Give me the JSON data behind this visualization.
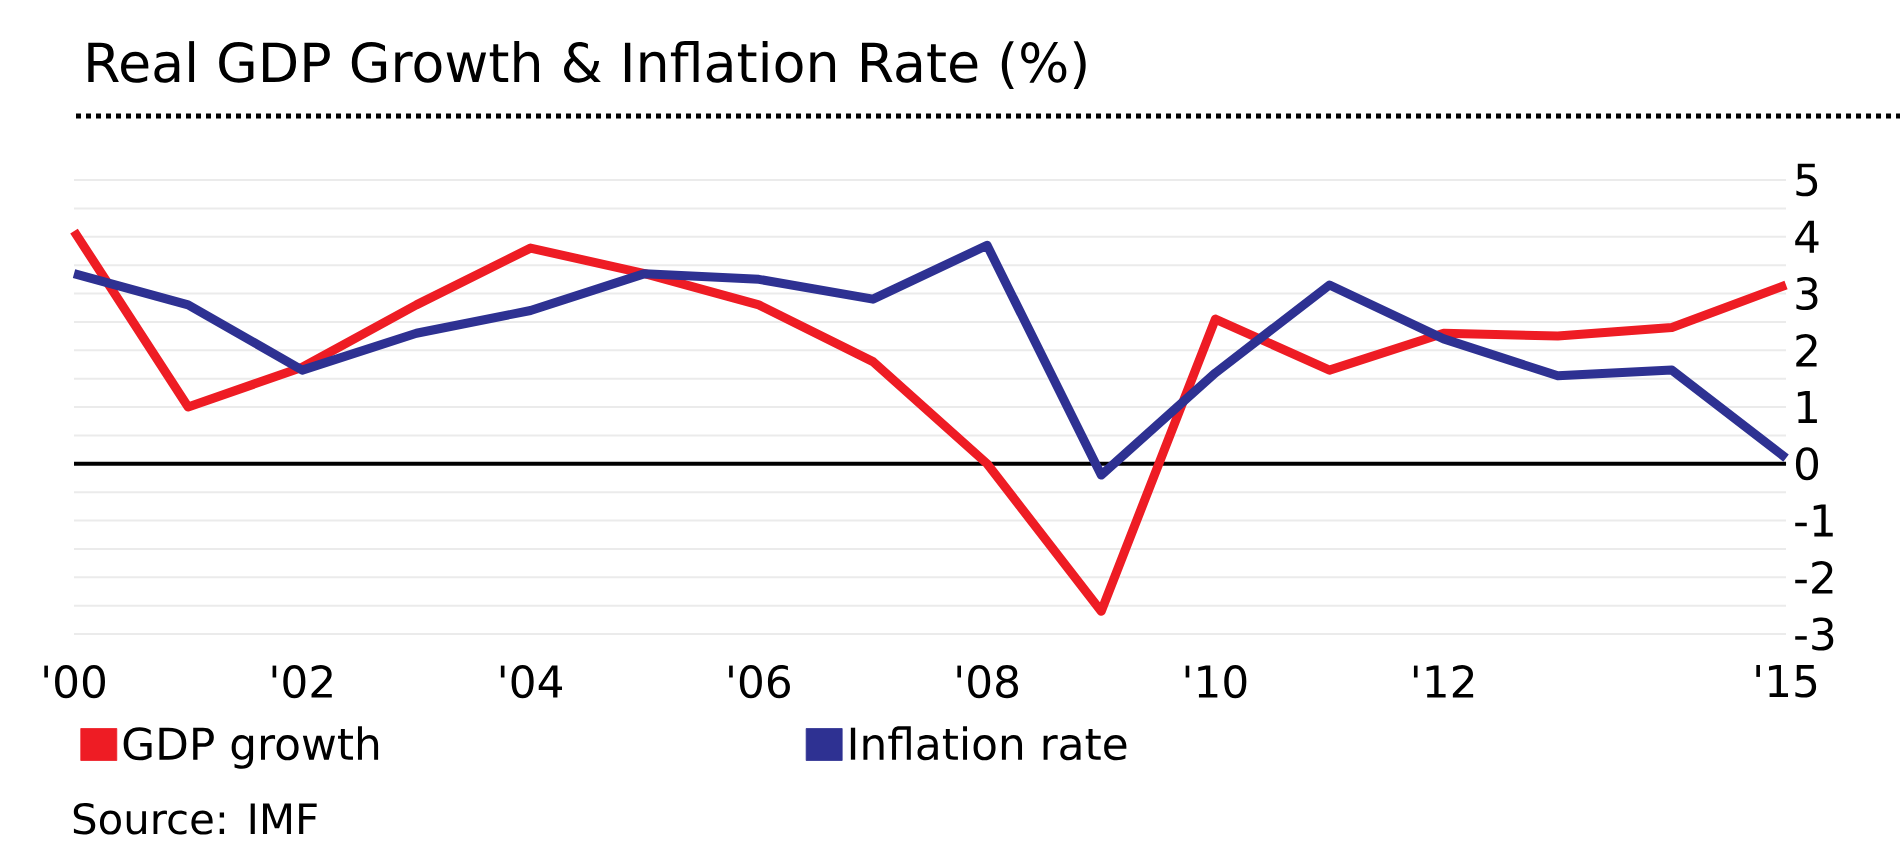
{
  "chart_data": {
    "type": "line",
    "title": "Real GDP Growth & Inflation Rate (%)",
    "x": [
      2000,
      2001,
      2002,
      2003,
      2004,
      2005,
      2006,
      2007,
      2008,
      2009,
      2010,
      2011,
      2012,
      2013,
      2014,
      2015
    ],
    "series": [
      {
        "name": "GDP growth",
        "color": "#ee1c24",
        "values": [
          4.1,
          1.0,
          1.7,
          2.8,
          3.8,
          3.35,
          2.8,
          1.8,
          0.0,
          -2.6,
          2.55,
          1.65,
          2.3,
          2.25,
          2.4,
          3.15
        ]
      },
      {
        "name": "Inflation rate",
        "color": "#2e3192",
        "values": [
          3.35,
          2.8,
          1.65,
          2.3,
          2.7,
          3.35,
          3.25,
          2.9,
          3.85,
          -0.2,
          1.6,
          3.15,
          2.2,
          1.55,
          1.65,
          0.1
        ]
      }
    ],
    "xlim": [
      2000,
      2015
    ],
    "xticks": [
      {
        "value": 2000,
        "label": "'00"
      },
      {
        "value": 2002,
        "label": "'02"
      },
      {
        "value": 2004,
        "label": "'04"
      },
      {
        "value": 2006,
        "label": "'06"
      },
      {
        "value": 2008,
        "label": "'08"
      },
      {
        "value": 2010,
        "label": "'10"
      },
      {
        "value": 2012,
        "label": "'12"
      },
      {
        "value": 2015,
        "label": "'15"
      }
    ],
    "ylim": [
      -3,
      5
    ],
    "yticks": [
      -3,
      {
        "value": -2.5,
        "label": null
      },
      -2,
      {
        "value": -1.5,
        "label": null
      },
      -1,
      {
        "value": -0.5,
        "label": null
      },
      0,
      {
        "value": 0.5,
        "label": null
      },
      1,
      {
        "value": 1.5,
        "label": null
      },
      2,
      {
        "value": 2.5,
        "label": null
      },
      3,
      {
        "value": 3.5,
        "label": null
      },
      4,
      {
        "value": 4.5,
        "label": null
      },
      5
    ],
    "grid": "y",
    "legend": "bottom",
    "ref_lines": [
      {
        "axis": "y",
        "value": 0,
        "color": "#000000"
      }
    ],
    "annotations": [
      "Source: IMF"
    ]
  }
}
